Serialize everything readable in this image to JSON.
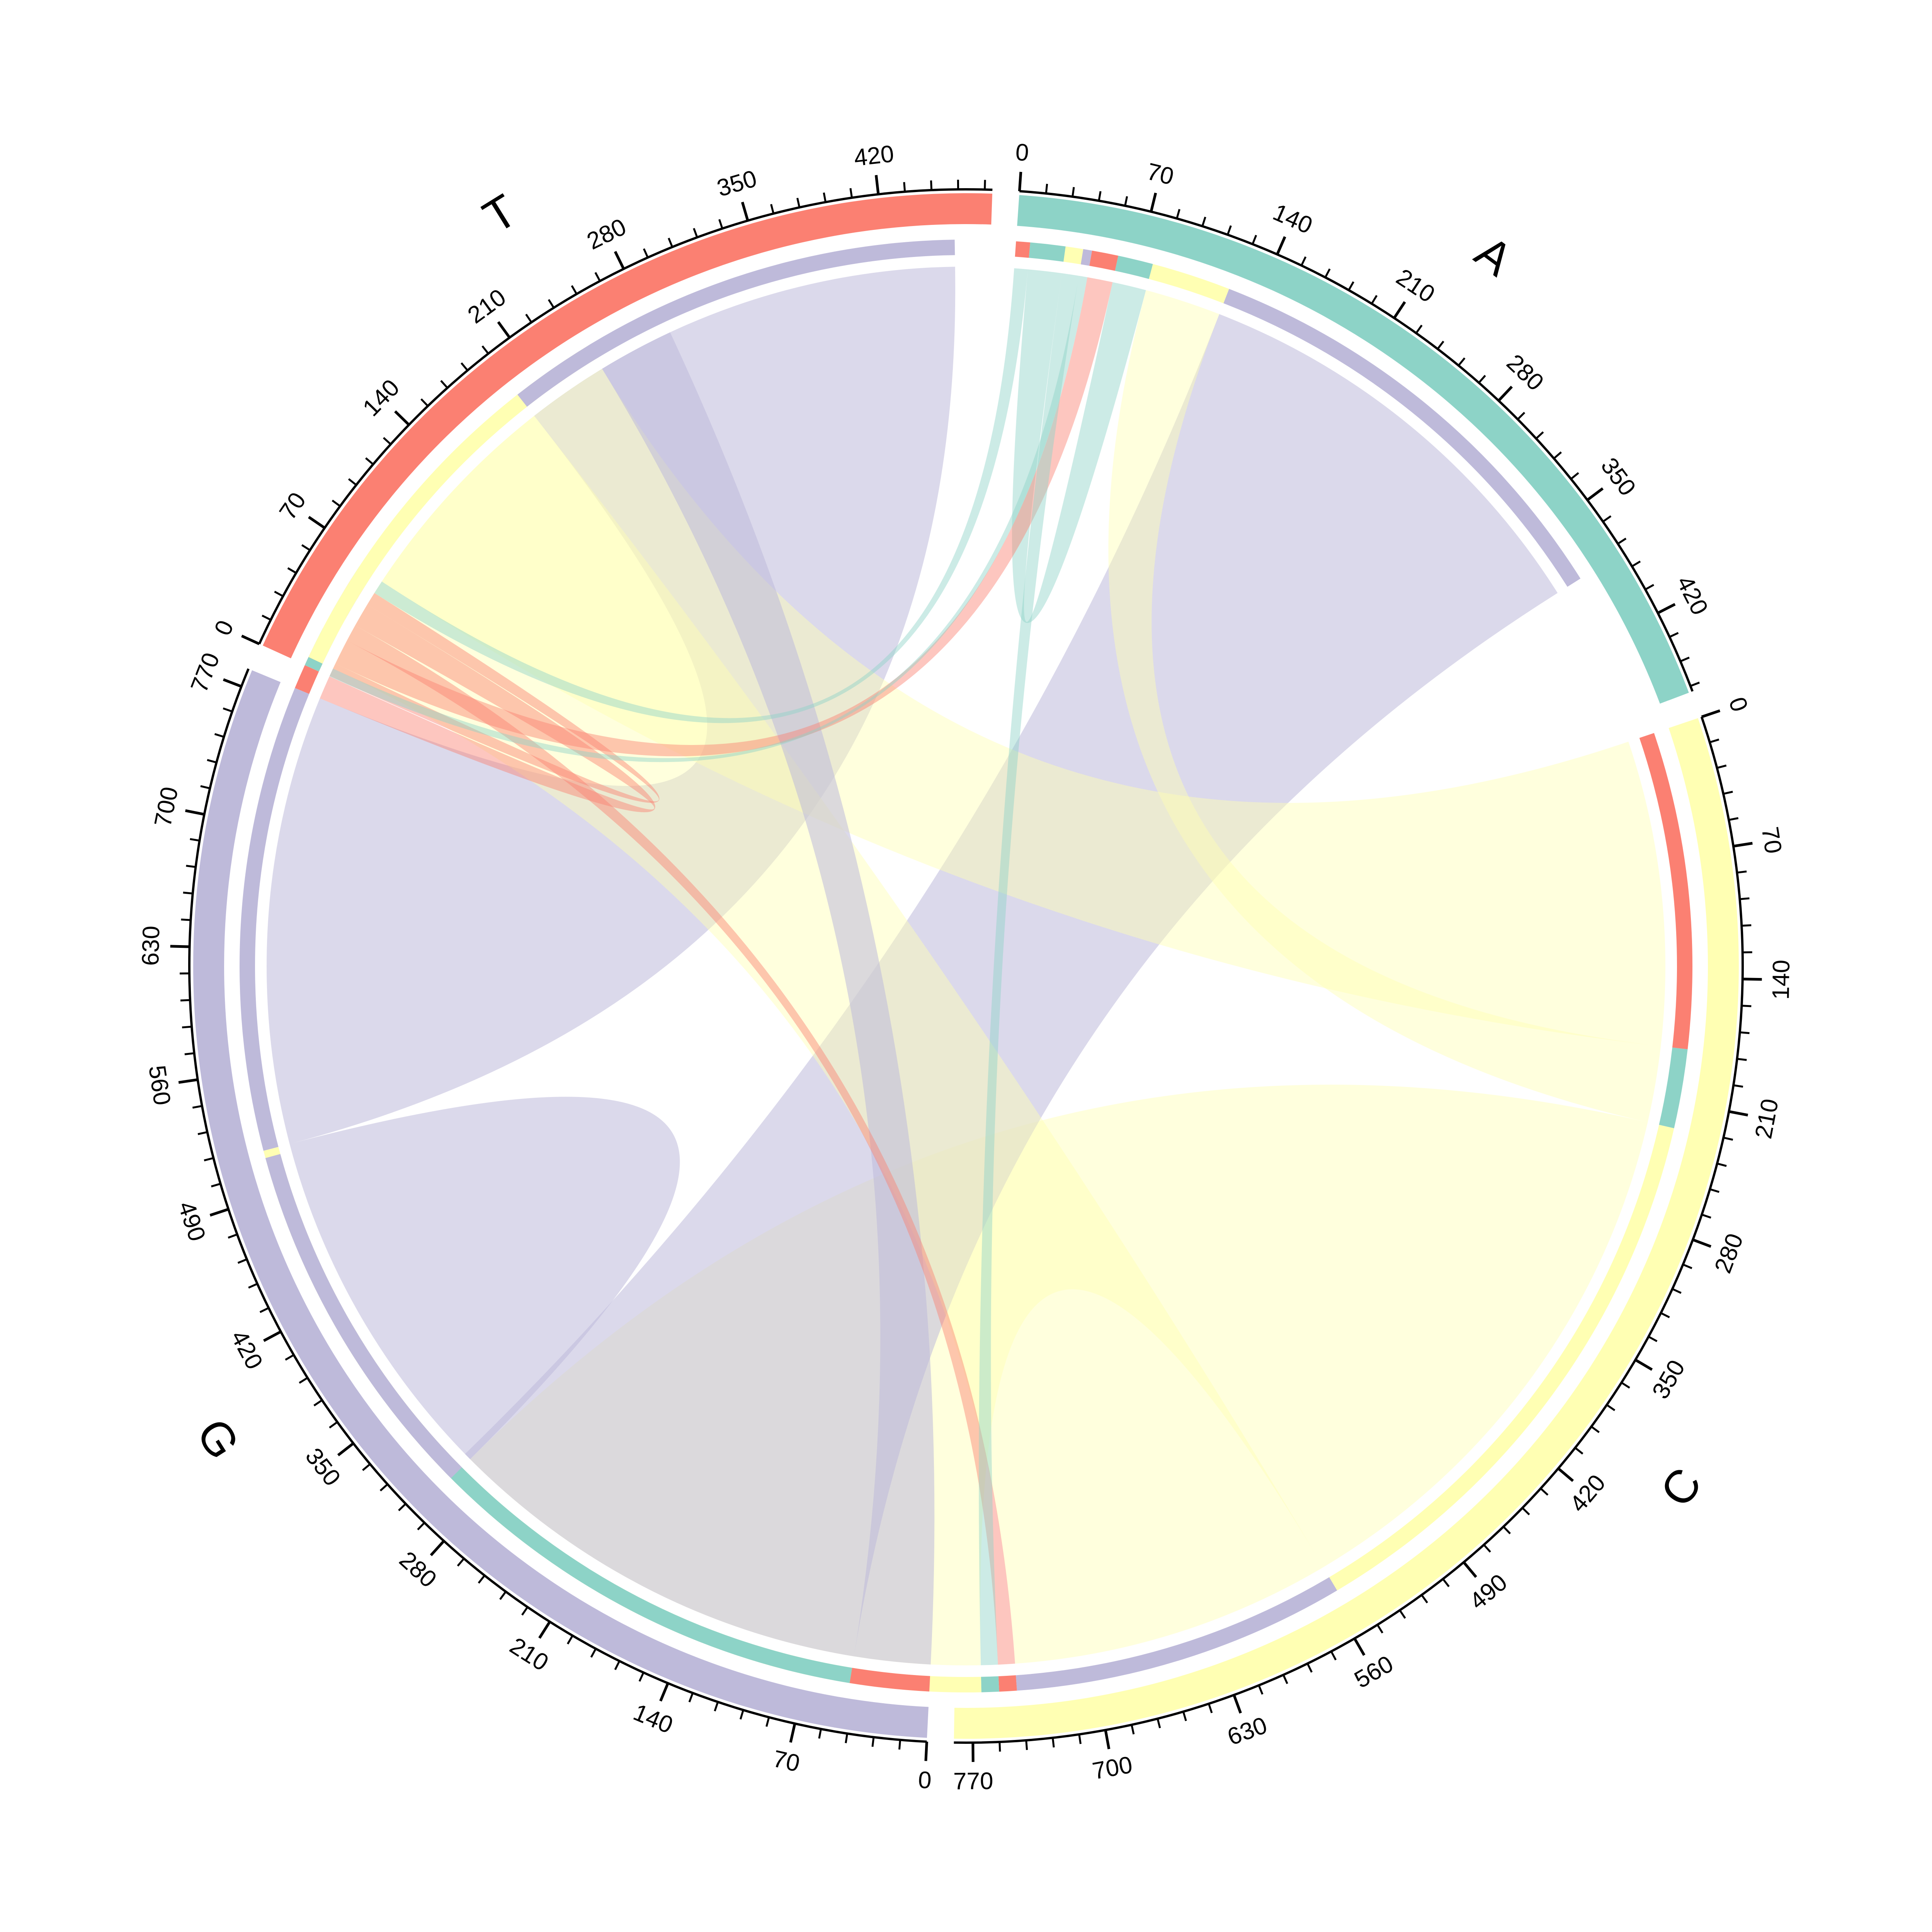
{
  "chart_data": {
    "type": "chord",
    "title": "",
    "sectors": [
      {
        "name": "T",
        "total": 480,
        "color": "#FB8072",
        "ticks": [
          0,
          70,
          140,
          210,
          280,
          350,
          420
        ]
      },
      {
        "name": "A",
        "total": 465,
        "color": "#8DD3C7",
        "ticks": [
          0,
          70,
          140,
          210,
          280,
          350,
          420
        ]
      },
      {
        "name": "C",
        "total": 780,
        "color": "#FFFFB3",
        "ticks": [
          0,
          70,
          140,
          210,
          280,
          350,
          420,
          490,
          560,
          630,
          700,
          770
        ]
      },
      {
        "name": "G",
        "total": 780,
        "color": "#BEBADA",
        "ticks": [
          0,
          70,
          140,
          210,
          280,
          350,
          420,
          490,
          560,
          630,
          700,
          770
        ]
      }
    ],
    "links": [
      {
        "from": "T",
        "to": "T",
        "value": 8
      },
      {
        "from": "T",
        "to": "A",
        "value": 15
      },
      {
        "from": "T",
        "to": "C",
        "value": 10
      },
      {
        "from": "T",
        "to": "G",
        "value": 14
      },
      {
        "from": "A",
        "to": "T",
        "value": 8
      },
      {
        "from": "A",
        "to": "A",
        "value": 20
      },
      {
        "from": "A",
        "to": "C",
        "value": 10
      },
      {
        "from": "A",
        "to": "G",
        "value": 5
      },
      {
        "from": "C",
        "to": "T",
        "value": 180
      },
      {
        "from": "C",
        "to": "A",
        "value": 45
      },
      {
        "from": "C",
        "to": "C",
        "value": 330
      },
      {
        "from": "C",
        "to": "G",
        "value": 190
      },
      {
        "from": "G",
        "to": "T",
        "value": 45
      },
      {
        "from": "G",
        "to": "A",
        "value": 260
      },
      {
        "from": "G",
        "to": "C",
        "value": 210
      },
      {
        "from": "G",
        "to": "G",
        "value": 265
      }
    ]
  }
}
